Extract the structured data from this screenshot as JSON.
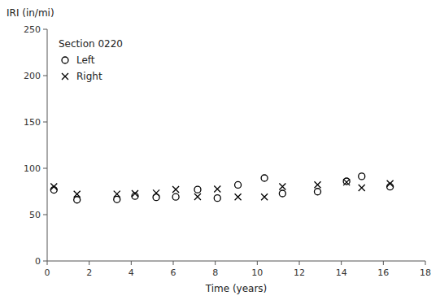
{
  "chart_data": {
    "type": "scatter",
    "title": "Section 0220",
    "x_label": "Time (years)",
    "y_label": "IRI (in/mi)",
    "x": [
      0.32,
      1.42,
      3.32,
      4.18,
      5.19,
      6.12,
      7.16,
      8.1,
      9.08,
      10.34,
      11.2,
      12.87,
      14.25,
      14.97,
      16.32
    ],
    "series": [
      {
        "name": "Left",
        "color": "black",
        "marker": "circle",
        "values": [
          76.7,
          66.02,
          66.39,
          70.0,
          68.72,
          69.13,
          77.05,
          67.86,
          82.04,
          89.48,
          72.8,
          74.8,
          85.98,
          91.33,
          80.08
        ]
      },
      {
        "name": "Right",
        "color": "black",
        "marker": "x",
        "values": [
          80.22,
          72.17,
          72.27,
          72.83,
          73.33,
          77.14,
          69.33,
          77.59,
          69.05,
          69.12,
          80.31,
          82.21,
          85.01,
          78.88,
          83.49
        ]
      }
    ],
    "xlim": [
      0,
      18
    ],
    "ylim": [
      0,
      250
    ],
    "xticks": [
      0,
      2,
      4,
      6,
      8,
      10,
      12,
      14,
      16,
      18
    ],
    "yticks": [
      0,
      50,
      100,
      150,
      200,
      250
    ],
    "grid": false,
    "legend": "upper left"
  }
}
